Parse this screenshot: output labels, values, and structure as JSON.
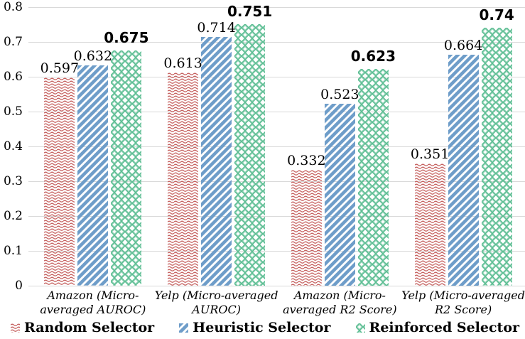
{
  "chart_data": {
    "type": "bar",
    "title": "",
    "xlabel": "",
    "ylabel": "",
    "ylim": [
      0,
      0.8
    ],
    "yticks": [
      "0",
      "0.1",
      "0.2",
      "0.3",
      "0.4",
      "0.5",
      "0.6",
      "0.7",
      "0.8"
    ],
    "grid": true,
    "legend_position": "bottom",
    "categories": [
      "Amazon (Micro-averaged AUROC)",
      "Yelp (Micro-averaged AUROC)",
      "Amazon (Micro-averaged R2 Score)",
      "Yelp (Micro-averaged R2 Score)"
    ],
    "category_lines": [
      [
        "Amazon (Micro-",
        "averaged AUROC)"
      ],
      [
        "Yelp (Micro-averaged",
        "AUROC)"
      ],
      [
        "Amazon (Micro-",
        "averaged R2 Score)"
      ],
      [
        "Yelp (Micro-averaged",
        "R2 Score)"
      ]
    ],
    "series": [
      {
        "name": "Random Selector",
        "pattern": "wave",
        "color": "#c5605e",
        "values": [
          0.597,
          0.613,
          0.332,
          0.351
        ],
        "bold_labels": false
      },
      {
        "name": "Heuristic Selector",
        "pattern": "diagonal",
        "color": "#6e9dc9",
        "values": [
          0.632,
          0.714,
          0.523,
          0.664
        ],
        "bold_labels": false
      },
      {
        "name": "Reinforced Selector",
        "pattern": "diamond",
        "color": "#5bbd92",
        "values": [
          0.675,
          0.751,
          0.623,
          0.74
        ],
        "bold_labels": true
      }
    ]
  },
  "colors": {
    "background": "#ffffff",
    "gridline": "#d9d9d9",
    "text": "#000000",
    "random_red": "#c5605e",
    "heuristic_blue": "#6e9dc9",
    "reinforced_green": "#5bbd92"
  }
}
